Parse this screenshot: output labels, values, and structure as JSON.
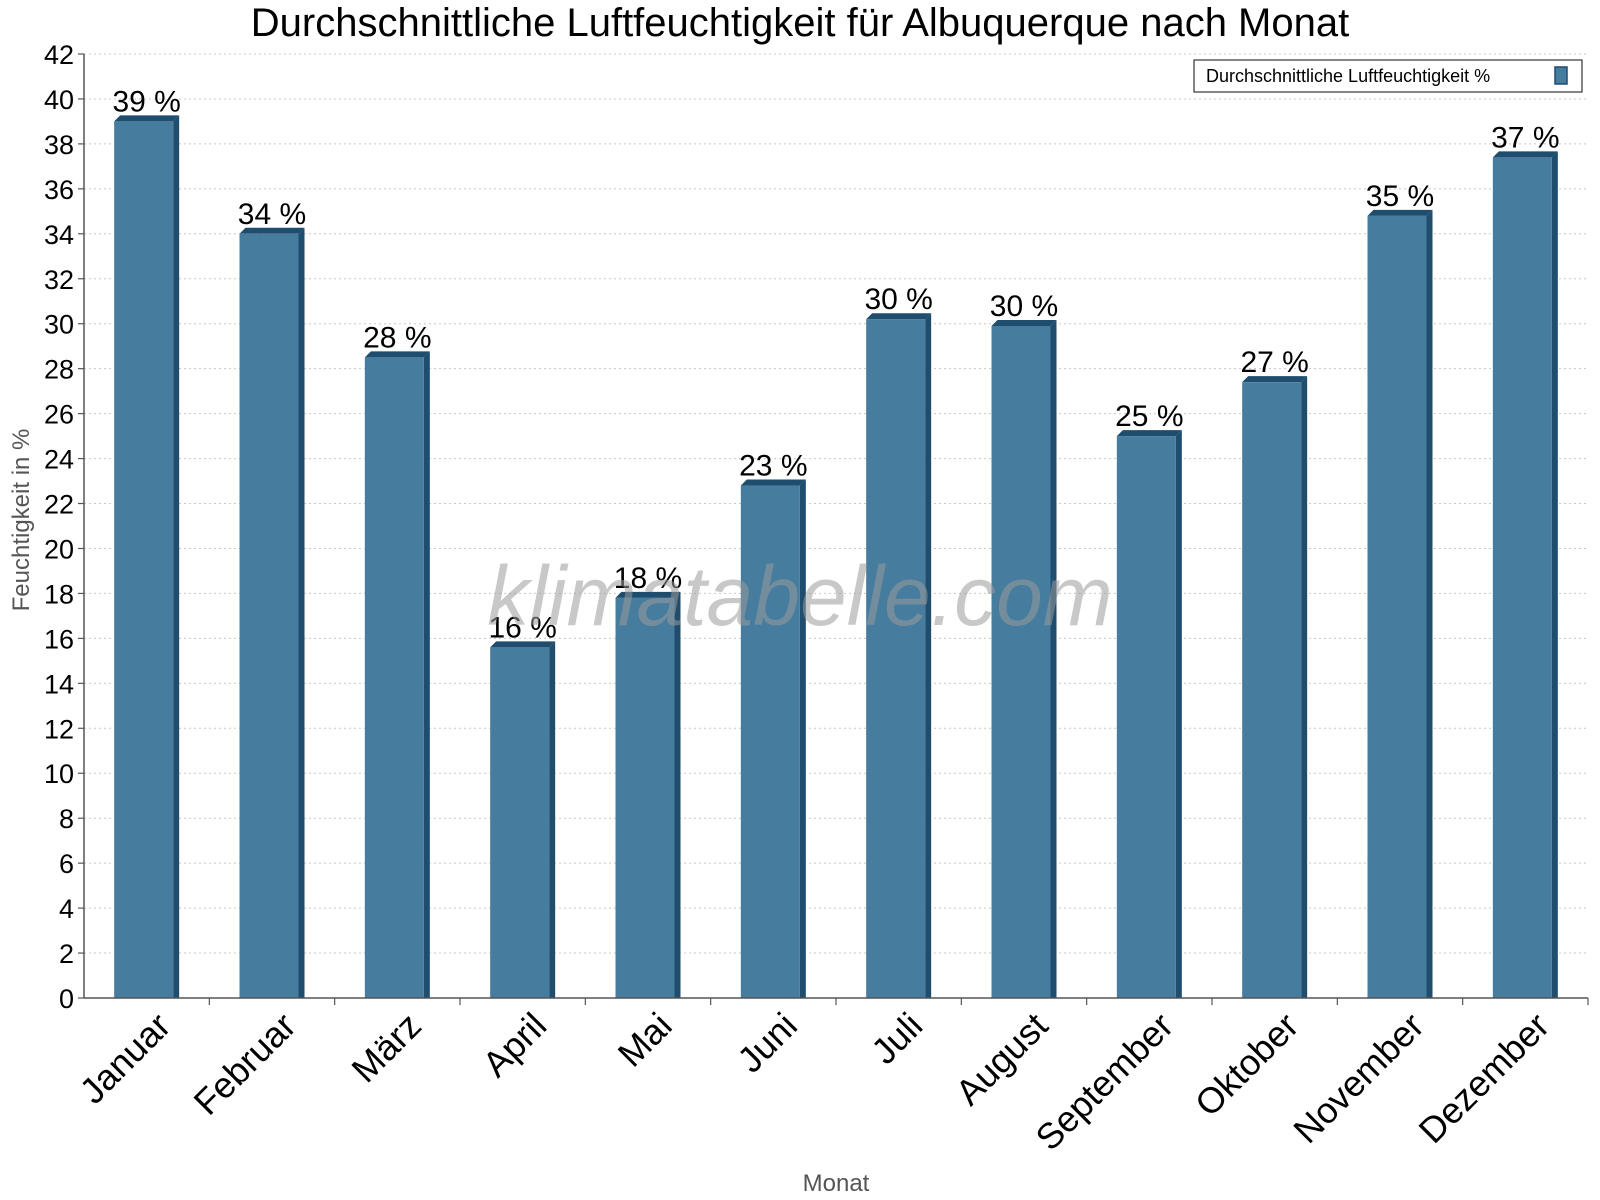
{
  "chart_data": {
    "type": "bar",
    "title": "Durchschnittliche Luftfeuchtigkeit für Albuquerque nach Monat",
    "xlabel": "Monat",
    "ylabel": "Feuchtigkeit in %",
    "ylim": [
      0,
      42
    ],
    "ytick_step": 2,
    "grid": true,
    "legend_position": "top-right",
    "categories": [
      "Januar",
      "Februar",
      "März",
      "April",
      "Mai",
      "Juni",
      "Juli",
      "August",
      "September",
      "Oktober",
      "November",
      "Dezember"
    ],
    "series": [
      {
        "name": "Durchschnittliche Luftfeuchtigkeit %",
        "values": [
          39,
          34,
          28.5,
          15.6,
          17.8,
          22.8,
          30.2,
          29.9,
          25,
          27.4,
          34.8,
          37.4
        ],
        "labels": [
          "39 %",
          "34 %",
          "28 %",
          "16 %",
          "18 %",
          "23 %",
          "30 %",
          "30 %",
          "25 %",
          "27 %",
          "35 %",
          "37 %"
        ],
        "color": "#467d9f",
        "side_color": "#1e4d6d"
      }
    ],
    "watermark": "klimatabelle.com"
  }
}
